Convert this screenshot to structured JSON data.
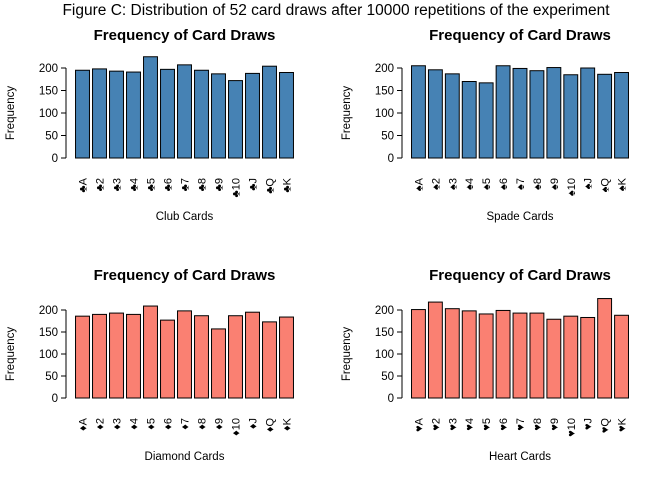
{
  "figure_title": "Figure C: Distribution of 52 card draws after 10000 repetitions of the experiment",
  "chart_data": [
    {
      "type": "bar",
      "title": "Frequency of Card Draws",
      "xlabel": "Club Cards",
      "ylabel": "Frequency",
      "suit_symbol": "♣",
      "color": "#4682B4",
      "yticks": [
        0,
        50,
        100,
        150,
        200
      ],
      "ylim": [
        0,
        240
      ],
      "categories": [
        "♣A",
        "♣2",
        "♣3",
        "♣4",
        "♣5",
        "♣6",
        "♣7",
        "♣8",
        "♣9",
        "♣10",
        "♣J",
        "♣Q",
        "♣K"
      ],
      "values": [
        195,
        198,
        193,
        191,
        225,
        197,
        207,
        195,
        187,
        172,
        188,
        204,
        190
      ]
    },
    {
      "type": "bar",
      "title": "Frequency of Card Draws",
      "xlabel": "Spade Cards",
      "ylabel": "Frequency",
      "suit_symbol": "♠",
      "color": "#4682B4",
      "yticks": [
        0,
        50,
        100,
        150,
        200
      ],
      "ylim": [
        0,
        210
      ],
      "categories": [
        "♠A",
        "♠2",
        "♠3",
        "♠4",
        "♠5",
        "♠6",
        "♠7",
        "♠8",
        "♠9",
        "♠10",
        "♠J",
        "♠Q",
        "♠K"
      ],
      "values": [
        205,
        196,
        187,
        170,
        167,
        205,
        199,
        194,
        201,
        185,
        200,
        186,
        190
      ]
    },
    {
      "type": "bar",
      "title": "Frequency of Card Draws",
      "xlabel": "Diamond Cards",
      "ylabel": "Frequency",
      "suit_symbol": "♦",
      "color": "#FA8072",
      "yticks": [
        0,
        50,
        100,
        150,
        200
      ],
      "ylim": [
        0,
        210
      ],
      "categories": [
        "♦A",
        "♦2",
        "♦3",
        "♦4",
        "♦5",
        "♦6",
        "♦7",
        "♦8",
        "♦9",
        "♦10",
        "♦J",
        "♦Q",
        "♦K"
      ],
      "values": [
        186,
        190,
        193,
        190,
        209,
        177,
        198,
        187,
        157,
        187,
        195,
        173,
        184
      ]
    },
    {
      "type": "bar",
      "title": "Frequency of Card Draws",
      "xlabel": "Heart Cards",
      "ylabel": "Frequency",
      "suit_symbol": "♥",
      "color": "#FA8072",
      "yticks": [
        0,
        50,
        100,
        150,
        200
      ],
      "ylim": [
        0,
        225
      ],
      "categories": [
        "♥A",
        "♥2",
        "♥3",
        "♥4",
        "♥5",
        "♥6",
        "♥7",
        "♥8",
        "♥9",
        "♥10",
        "♥J",
        "♥Q",
        "♥K"
      ],
      "values": [
        201,
        218,
        203,
        198,
        191,
        199,
        193,
        193,
        179,
        186,
        183,
        226,
        188
      ]
    }
  ]
}
